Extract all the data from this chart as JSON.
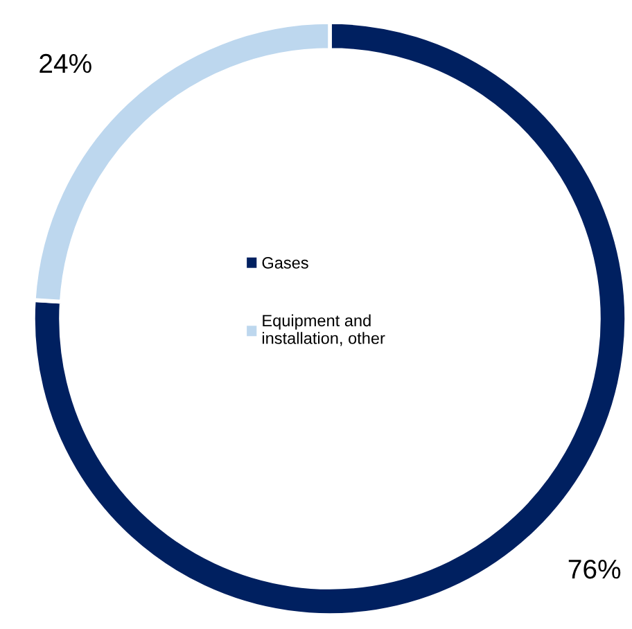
{
  "chart_data": {
    "type": "donut",
    "categories": [
      "Gases",
      "Equipment and installation, other"
    ],
    "values": [
      76,
      24
    ],
    "colors": [
      "#002060",
      "#bdd7ee"
    ],
    "value_labels": [
      "76%",
      "24%"
    ],
    "legend": "center"
  }
}
